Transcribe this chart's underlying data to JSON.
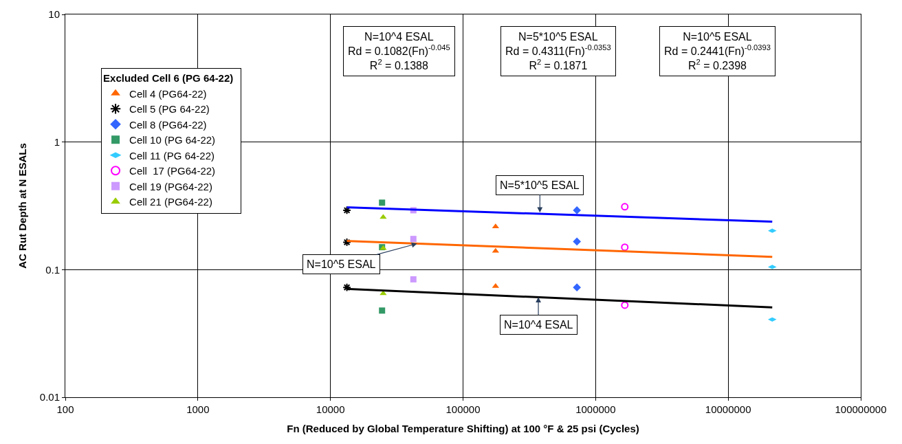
{
  "chart_data": {
    "type": "scatter",
    "xlabel": "Fn (Reduced by Global Temperature Shifting) at 100 °F & 25 psi (Cycles)",
    "ylabel": "AC Rut Depth at N ESALs",
    "legend_title": "Excluded Cell 6 (PG 64-22)",
    "log": "xy",
    "grid": true,
    "legend": "top left",
    "xlim": [
      100,
      100000000
    ],
    "xticks": [
      100,
      1000,
      10000,
      100000,
      1000000,
      10000000,
      100000000
    ],
    "ylim": [
      0.01,
      10
    ],
    "yticks": [
      0.01,
      0.1,
      1,
      10
    ],
    "series": [
      {
        "name": "Cell 4 (PG64-22)",
        "color": "#ff6600",
        "marker": "triangle",
        "x": [
          176000,
          176000,
          176000
        ],
        "values": [
          0.217,
          0.14,
          0.074
        ]
      },
      {
        "name": "Cell 5 (PG 64-22)",
        "color": "#000000",
        "marker": "cross",
        "x": [
          13300,
          13300,
          13300
        ],
        "values": [
          0.292,
          0.164,
          0.0726
        ]
      },
      {
        "name": "Cell 8 (PG64-22)",
        "color": "#3366ff",
        "marker": "diamond",
        "x": [
          723000,
          723000,
          723000
        ],
        "values": [
          0.292,
          0.166,
          0.0726
        ]
      },
      {
        "name": "Cell 10 (PG 64-22)",
        "color": "#339966",
        "marker": "square",
        "x": [
          24500,
          24500,
          24500
        ],
        "values": [
          0.335,
          0.15,
          0.0478
        ]
      },
      {
        "name": "Cell 11 (PG 64-22)",
        "color": "#33ccff",
        "x": [
          21500000,
          21500000,
          21500000
        ],
        "values": [
          0.202,
          0.105,
          0.0407
        ]
      },
      {
        "name": "Cell  17 (PG64-22)",
        "color": "#ff00ff",
        "marker": "circle",
        "x": [
          1660000,
          1660000,
          1660000
        ],
        "values": [
          0.311,
          0.15,
          0.0527
        ]
      },
      {
        "name": "Cell 19 (PG64-22)",
        "color": "#cc99ff",
        "marker": "square",
        "x": [
          42200,
          42200,
          42200
        ],
        "values": [
          0.292,
          0.174,
          0.084
        ]
      },
      {
        "name": "Cell 21 (PG64-22)",
        "color": "#99cc00",
        "marker": "triangle",
        "x": [
          25000,
          25000,
          25000
        ],
        "values": [
          0.258,
          0.147,
          0.065
        ]
      },
      {
        "type": "line",
        "color": "#0000ff",
        "marker": "none",
        "line_style": "solid",
        "x": [
          13300,
          21500000
        ],
        "values": [
          0.308,
          0.2376
        ]
      },
      {
        "type": "line",
        "color": "#ff6600",
        "marker": "none",
        "line_style": "solid",
        "x": [
          13300,
          21500000
        ],
        "values": [
          0.168,
          0.1258
        ]
      },
      {
        "type": "line",
        "color": "#000000",
        "marker": "none",
        "line_style": "solid",
        "x": [
          13300,
          21500000
        ],
        "values": [
          0.0706,
          0.0506
        ]
      }
    ],
    "annotations": [
      "N=10^4 ESAL\nRd = 0.1082(Fn)$^{-0.045}$\nR$^{2}$ = 0.1388",
      "N=5*10^5 ESAL\nRd = 0.4311(Fn)$^{-0.0353}$\nR$^{2}$ = 0.1871",
      "N=10^5 ESAL\nRd = 0.2441(Fn)$^{-0.0393}$\nR$^{2}$ = 0.2398",
      {
        "text": "N=5*10^5 ESAL",
        "x": 380000,
        "y": 0.28
      },
      {
        "text": "N=10^5 ESAL",
        "x": 45000,
        "y": 0.16
      },
      {
        "text": "N=10^4 ESAL",
        "x": 370000,
        "y": 0.061
      }
    ]
  }
}
